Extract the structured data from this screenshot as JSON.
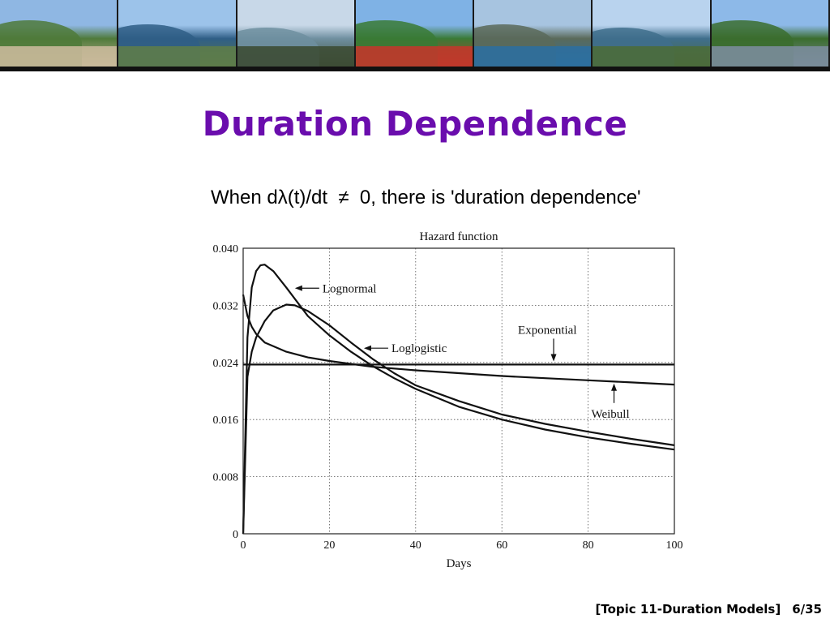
{
  "slide": {
    "title": "Duration Dependence",
    "subtitle": "When dλ(t)/dt  ≠  0, there is 'duration dependence'",
    "footer_topic": "[Topic 11-Duration Models]",
    "footer_page": "6/35"
  },
  "banner": {
    "photos": [
      {
        "name": "hillside-village",
        "sky": "#8fb7e3",
        "mid": "#4f7a3a",
        "ground": "#c9b99a"
      },
      {
        "name": "lake-mountains",
        "sky": "#9cc3ea",
        "mid": "#2f5e86",
        "ground": "#5d7c4a"
      },
      {
        "name": "lakeside-promenade",
        "sky": "#c8d8e8",
        "mid": "#6f8fa0",
        "ground": "#3d4d35"
      },
      {
        "name": "flower-garden",
        "sky": "#7fb2e5",
        "mid": "#3a7a35",
        "ground": "#c0392b"
      },
      {
        "name": "mountain-lake",
        "sky": "#a7c4e0",
        "mid": "#5a6a5a",
        "ground": "#2e6f9e"
      },
      {
        "name": "cloudy-lake",
        "sky": "#b9d3ee",
        "mid": "#3f6e8c",
        "ground": "#4b6b3b"
      },
      {
        "name": "promenade-trees",
        "sky": "#8db9e8",
        "mid": "#3b6d2e",
        "ground": "#7a8c9a"
      }
    ]
  },
  "chart_data": {
    "type": "line",
    "title": "Hazard function",
    "xlabel": "Days",
    "ylabel": "",
    "xlim": [
      0,
      100
    ],
    "ylim": [
      0,
      0.04
    ],
    "x_ticks": [
      0,
      20,
      40,
      60,
      80,
      100
    ],
    "y_ticks": [
      0,
      0.008,
      0.016,
      0.024,
      0.032,
      0.04
    ],
    "x_tick_labels": [
      "0",
      "20",
      "40",
      "60",
      "80",
      "100"
    ],
    "y_tick_labels": [
      "0",
      "0.008",
      "0.016",
      "0.024",
      "0.032",
      "0.040"
    ],
    "grid": true,
    "series": [
      {
        "name": "Lognormal",
        "x": [
          0,
          1,
          2,
          3,
          4,
          5,
          7,
          10,
          15,
          20,
          25,
          30,
          35,
          40,
          50,
          60,
          70,
          80,
          90,
          100
        ],
        "y": [
          0.0,
          0.0275,
          0.0345,
          0.0368,
          0.0376,
          0.0377,
          0.0368,
          0.0345,
          0.0305,
          0.0278,
          0.0255,
          0.0235,
          0.0218,
          0.0203,
          0.0178,
          0.016,
          0.0146,
          0.0135,
          0.0126,
          0.0118
        ]
      },
      {
        "name": "Loglogistic",
        "x": [
          0,
          1,
          2,
          3,
          5,
          7,
          10,
          12,
          15,
          20,
          25,
          30,
          35,
          40,
          50,
          60,
          70,
          80,
          90,
          100
        ],
        "y": [
          0.0,
          0.022,
          0.0255,
          0.0275,
          0.0298,
          0.0313,
          0.0321,
          0.032,
          0.0312,
          0.0292,
          0.0268,
          0.0245,
          0.0225,
          0.0208,
          0.0186,
          0.0167,
          0.0154,
          0.0143,
          0.0133,
          0.0124
        ]
      },
      {
        "name": "Weibull",
        "x": [
          0,
          1,
          2,
          3,
          5,
          10,
          15,
          20,
          25,
          30,
          40,
          50,
          60,
          70,
          80,
          90,
          100
        ],
        "y": [
          0.0335,
          0.0305,
          0.029,
          0.028,
          0.0268,
          0.0255,
          0.0247,
          0.0242,
          0.0238,
          0.0234,
          0.0229,
          0.0225,
          0.0221,
          0.0218,
          0.0215,
          0.0212,
          0.0209
        ]
      },
      {
        "name": "Exponential",
        "x": [
          0,
          100
        ],
        "y": [
          0.0237,
          0.0237
        ]
      }
    ],
    "annotations": [
      {
        "text": "Lognormal",
        "target": [
          12,
          0.0344
        ],
        "dir": "left"
      },
      {
        "text": "Loglogistic",
        "target": [
          28,
          0.026
        ],
        "dir": "left"
      },
      {
        "text": "Exponential",
        "target": [
          72,
          0.0237
        ],
        "dir": "up"
      },
      {
        "text": "Weibull",
        "target": [
          86,
          0.0215
        ],
        "dir": "down"
      }
    ]
  }
}
